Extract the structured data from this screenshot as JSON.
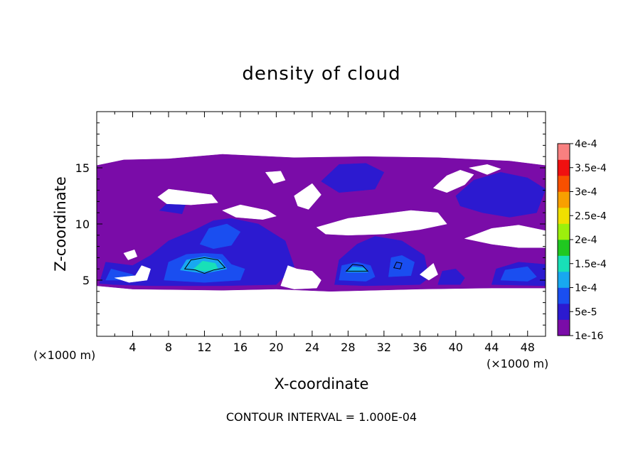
{
  "chart_data": {
    "type": "heatmap",
    "title": "density of cloud",
    "xlabel": "X-coordinate",
    "ylabel": "Z-coordinate",
    "x_unit_left": "(×1000 m)",
    "x_unit_right": "(×1000 m)",
    "footer": "CONTOUR INTERVAL = 1.000E-04",
    "xlim": [
      0,
      50
    ],
    "ylim": [
      0,
      20
    ],
    "x_ticks": [
      "4",
      "8",
      "12",
      "16",
      "20",
      "24",
      "28",
      "32",
      "36",
      "40",
      "44",
      "48"
    ],
    "x_tick_values": [
      4,
      8,
      12,
      16,
      20,
      24,
      28,
      32,
      36,
      40,
      44,
      48
    ],
    "y_ticks": [
      "5",
      "10",
      "15"
    ],
    "y_tick_values": [
      5,
      10,
      15
    ],
    "colorbar": {
      "labels": [
        "1e-16",
        "5e-5",
        "1e-4",
        "1.5e-4",
        "2e-4",
        "2.5e-4",
        "3e-4",
        "3.5e-4",
        "4e-4"
      ],
      "colors": [
        "#7a0ca8",
        "#2c1ad0",
        "#1a4ef0",
        "#18a8f0",
        "#18e0b8",
        "#20c820",
        "#9cf00c",
        "#f0e000",
        "#f8a000",
        "#f85000",
        "#f01010",
        "#f88080"
      ]
    },
    "regions": [
      {
        "level": 0,
        "color": "#7a0ca8",
        "points": [
          [
            0,
            4.5
          ],
          [
            0,
            15.2
          ],
          [
            3,
            15.7
          ],
          [
            8,
            15.8
          ],
          [
            14,
            16.2
          ],
          [
            22,
            15.9
          ],
          [
            30,
            16.0
          ],
          [
            38,
            15.9
          ],
          [
            46,
            15.6
          ],
          [
            50,
            15.2
          ],
          [
            50,
            4.3
          ],
          [
            44,
            4.3
          ],
          [
            36,
            4.2
          ],
          [
            26,
            4.0
          ],
          [
            20,
            4.2
          ],
          [
            14,
            4.1
          ],
          [
            4,
            4.2
          ]
        ]
      },
      {
        "level": 1,
        "color": "#2c1ad0",
        "points": [
          [
            0.3,
            4.7
          ],
          [
            1,
            6.6
          ],
          [
            4,
            6.3
          ],
          [
            6,
            7.2
          ],
          [
            8,
            8.5
          ],
          [
            11,
            9.5
          ],
          [
            13,
            10.3
          ],
          [
            15,
            10.5
          ],
          [
            18,
            10.0
          ],
          [
            21,
            8.5
          ],
          [
            22,
            6.2
          ],
          [
            20,
            4.6
          ],
          [
            14,
            4.5
          ],
          [
            6,
            4.5
          ],
          [
            2,
            4.6
          ]
        ]
      },
      {
        "level": 1,
        "color": "#2c1ad0",
        "points": [
          [
            26.5,
            4.6
          ],
          [
            27,
            6.8
          ],
          [
            29,
            8.2
          ],
          [
            31,
            8.9
          ],
          [
            34,
            8.5
          ],
          [
            36.5,
            7.2
          ],
          [
            37,
            5.2
          ],
          [
            36,
            4.6
          ],
          [
            30,
            4.5
          ]
        ]
      },
      {
        "level": 1,
        "color": "#2c1ad0",
        "points": [
          [
            38,
            4.6
          ],
          [
            38.5,
            5.8
          ],
          [
            40,
            6.0
          ],
          [
            41,
            5.2
          ],
          [
            40.5,
            4.6
          ]
        ]
      },
      {
        "level": 1,
        "color": "#2c1ad0",
        "points": [
          [
            44,
            4.6
          ],
          [
            44.5,
            6.0
          ],
          [
            47,
            6.6
          ],
          [
            50,
            6.4
          ],
          [
            50,
            4.5
          ]
        ]
      },
      {
        "level": 1,
        "color": "#2c1ad0",
        "points": [
          [
            40,
            12.5
          ],
          [
            42,
            13.9
          ],
          [
            45,
            14.6
          ],
          [
            48,
            14.1
          ],
          [
            50,
            13.1
          ],
          [
            49,
            11.0
          ],
          [
            46,
            10.6
          ],
          [
            43,
            11.0
          ],
          [
            40.5,
            11.6
          ]
        ]
      },
      {
        "level": 1,
        "color": "#2c1ad0",
        "points": [
          [
            25,
            13.8
          ],
          [
            27,
            15.3
          ],
          [
            30,
            15.4
          ],
          [
            32,
            14.6
          ],
          [
            31,
            13.1
          ],
          [
            27,
            12.8
          ]
        ]
      },
      {
        "level": 1,
        "color": "#2c1ad0",
        "points": [
          [
            7,
            11.2
          ],
          [
            8.5,
            12.3
          ],
          [
            10,
            12.0
          ],
          [
            9.5,
            10.9
          ]
        ]
      },
      {
        "level": 2,
        "color": "#1a4ef0",
        "points": [
          [
            1,
            5.0
          ],
          [
            1.6,
            6.0
          ],
          [
            4,
            5.5
          ],
          [
            4.5,
            5.0
          ]
        ]
      },
      {
        "level": 2,
        "color": "#1a4ef0",
        "points": [
          [
            7.5,
            5.0
          ],
          [
            8,
            6.6
          ],
          [
            10,
            7.3
          ],
          [
            12,
            7.4
          ],
          [
            14,
            7.3
          ],
          [
            15,
            6.4
          ],
          [
            16.5,
            6.0
          ],
          [
            16,
            5.0
          ],
          [
            12,
            4.8
          ]
        ]
      },
      {
        "level": 2,
        "color": "#1a4ef0",
        "points": [
          [
            11.5,
            8.2
          ],
          [
            12.5,
            9.6
          ],
          [
            14.5,
            10.0
          ],
          [
            16,
            9.3
          ],
          [
            15,
            8.1
          ],
          [
            13,
            7.8
          ]
        ]
      },
      {
        "level": 2,
        "color": "#1a4ef0",
        "points": [
          [
            27,
            5.0
          ],
          [
            27.3,
            6.3
          ],
          [
            29,
            6.6
          ],
          [
            30.5,
            6.3
          ],
          [
            31,
            5.3
          ],
          [
            30,
            4.9
          ]
        ]
      },
      {
        "level": 2,
        "color": "#1a4ef0",
        "points": [
          [
            32.5,
            5.3
          ],
          [
            32.8,
            7.0
          ],
          [
            34,
            7.2
          ],
          [
            35.4,
            6.6
          ],
          [
            35,
            5.4
          ]
        ]
      },
      {
        "level": 2,
        "color": "#1a4ef0",
        "points": [
          [
            45,
            5.0
          ],
          [
            45.5,
            5.9
          ],
          [
            48,
            6.2
          ],
          [
            49,
            5.3
          ],
          [
            48,
            4.9
          ]
        ]
      },
      {
        "level": 3,
        "color": "#18a8f0",
        "points": [
          [
            9.3,
            5.9
          ],
          [
            10,
            6.8
          ],
          [
            12,
            7.1
          ],
          [
            13.8,
            6.8
          ],
          [
            14.5,
            6.0
          ],
          [
            12,
            5.6
          ]
        ]
      },
      {
        "level": 3,
        "color": "#18a8f0",
        "points": [
          [
            27.8,
            5.7
          ],
          [
            28.5,
            6.2
          ],
          [
            29.8,
            6.1
          ],
          [
            30.2,
            5.7
          ]
        ]
      },
      {
        "level": 4,
        "color": "#18e0b8",
        "points": [
          [
            10.8,
            6.0
          ],
          [
            11.8,
            6.7
          ],
          [
            13.2,
            6.5
          ],
          [
            13.5,
            6.0
          ],
          [
            12,
            5.8
          ]
        ]
      },
      {
        "level": -1,
        "color": "#ffffff",
        "points": [
          [
            6.8,
            12.4
          ],
          [
            8,
            13.1
          ],
          [
            10,
            12.9
          ],
          [
            12.8,
            12.6
          ],
          [
            13.5,
            11.9
          ],
          [
            10.5,
            11.7
          ],
          [
            7.8,
            11.8
          ]
        ]
      },
      {
        "level": -1,
        "color": "#ffffff",
        "points": [
          [
            14,
            11.2
          ],
          [
            16,
            11.7
          ],
          [
            19,
            11.2
          ],
          [
            20,
            10.7
          ],
          [
            18.5,
            10.4
          ],
          [
            15.5,
            10.6
          ]
        ]
      },
      {
        "level": -1,
        "color": "#ffffff",
        "points": [
          [
            18.8,
            14.6
          ],
          [
            20.5,
            14.7
          ],
          [
            21,
            13.9
          ],
          [
            19.7,
            13.6
          ]
        ]
      },
      {
        "level": -1,
        "color": "#ffffff",
        "points": [
          [
            22,
            12.5
          ],
          [
            24,
            13.6
          ],
          [
            25,
            12.6
          ],
          [
            23.6,
            11.3
          ],
          [
            22.4,
            11.6
          ]
        ]
      },
      {
        "level": -1,
        "color": "#ffffff",
        "points": [
          [
            24.5,
            9.7
          ],
          [
            28,
            10.5
          ],
          [
            31,
            10.8
          ],
          [
            35,
            11.2
          ],
          [
            38,
            11.0
          ],
          [
            39,
            10.0
          ],
          [
            36,
            9.5
          ],
          [
            32,
            9.1
          ],
          [
            28,
            9.0
          ],
          [
            25.5,
            9.1
          ]
        ]
      },
      {
        "level": -1,
        "color": "#ffffff",
        "points": [
          [
            37.5,
            13.2
          ],
          [
            39,
            14.3
          ],
          [
            40.5,
            14.8
          ],
          [
            42,
            14.4
          ],
          [
            41,
            13.5
          ],
          [
            39,
            12.8
          ]
        ]
      },
      {
        "level": -1,
        "color": "#ffffff",
        "points": [
          [
            41.5,
            15.0
          ],
          [
            43.5,
            15.3
          ],
          [
            45,
            14.9
          ],
          [
            43.5,
            14.4
          ]
        ]
      },
      {
        "level": -1,
        "color": "#ffffff",
        "points": [
          [
            41,
            8.7
          ],
          [
            44,
            9.6
          ],
          [
            47,
            9.9
          ],
          [
            50,
            9.4
          ],
          [
            50,
            7.9
          ],
          [
            47,
            7.9
          ],
          [
            44,
            8.2
          ]
        ]
      },
      {
        "level": -1,
        "color": "#ffffff",
        "points": [
          [
            3,
            7.4
          ],
          [
            4.2,
            7.7
          ],
          [
            4.5,
            7.1
          ],
          [
            3.5,
            6.8
          ]
        ]
      },
      {
        "level": -1,
        "color": "#ffffff",
        "points": [
          [
            2,
            5.2
          ],
          [
            4.3,
            5.4
          ],
          [
            5,
            6.3
          ],
          [
            6,
            6.0
          ],
          [
            5.6,
            5.0
          ],
          [
            3.6,
            4.8
          ]
        ]
      },
      {
        "level": -1,
        "color": "#ffffff",
        "points": [
          [
            20.5,
            4.5
          ],
          [
            21.3,
            6.3
          ],
          [
            22.3,
            6.0
          ],
          [
            24,
            5.8
          ],
          [
            25,
            5.0
          ],
          [
            24.5,
            4.3
          ],
          [
            22,
            4.2
          ]
        ]
      },
      {
        "level": -1,
        "color": "#ffffff",
        "points": [
          [
            36,
            5.5
          ],
          [
            37.5,
            6.5
          ],
          [
            38,
            5.5
          ],
          [
            37,
            5.0
          ]
        ]
      }
    ],
    "contour_1e-4": [
      [
        [
          9.8,
          6.0
        ],
        [
          10.5,
          6.8
        ],
        [
          12,
          7.0
        ],
        [
          13.5,
          6.8
        ],
        [
          14.3,
          6.1
        ],
        [
          13,
          5.9
        ],
        [
          12,
          5.6
        ],
        [
          11,
          5.9
        ]
      ],
      [
        [
          27.8,
          5.8
        ],
        [
          28.5,
          6.4
        ],
        [
          29.6,
          6.3
        ],
        [
          30.2,
          5.8
        ]
      ],
      [
        [
          33.1,
          6.1
        ],
        [
          33.4,
          6.6
        ],
        [
          34,
          6.5
        ],
        [
          33.8,
          6.0
        ]
      ]
    ]
  }
}
